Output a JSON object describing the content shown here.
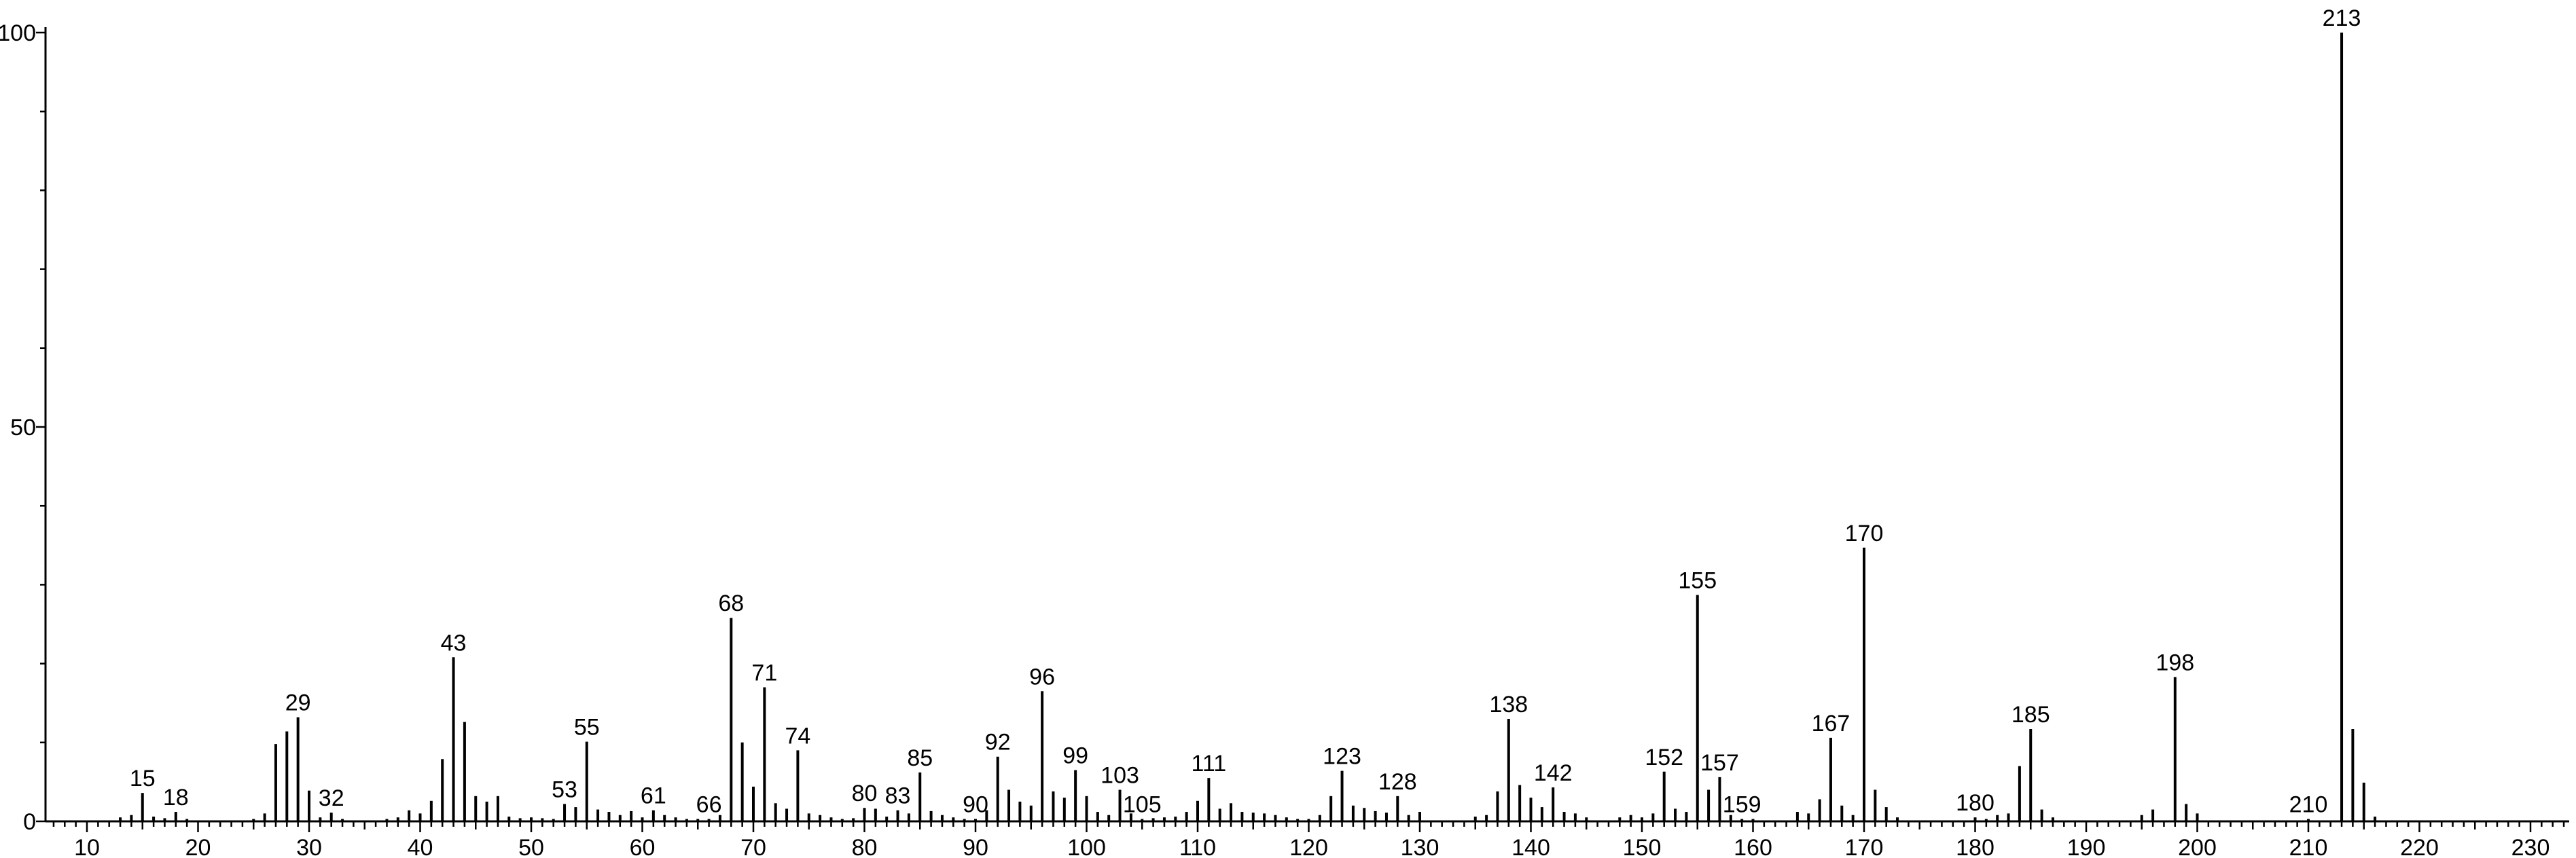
{
  "chart_data": {
    "type": "bar",
    "title": "",
    "xlabel": "",
    "ylabel": "",
    "xlim": [
      5,
      233
    ],
    "ylim": [
      0,
      100
    ],
    "x_ticks": [
      10,
      20,
      30,
      40,
      50,
      60,
      70,
      80,
      90,
      100,
      110,
      120,
      130,
      140,
      150,
      160,
      170,
      180,
      190,
      200,
      210,
      220,
      230
    ],
    "y_ticks": [
      0,
      50,
      100
    ],
    "grid": false,
    "peaks": [
      {
        "x": 13,
        "y": 0.5
      },
      {
        "x": 14,
        "y": 0.8
      },
      {
        "x": 15,
        "y": 3.6,
        "label": "15"
      },
      {
        "x": 16,
        "y": 0.6
      },
      {
        "x": 17,
        "y": 0.4
      },
      {
        "x": 18,
        "y": 1.2,
        "label": "18"
      },
      {
        "x": 19,
        "y": 0.3
      },
      {
        "x": 25,
        "y": 0.3
      },
      {
        "x": 26,
        "y": 1.0
      },
      {
        "x": 27,
        "y": 9.8
      },
      {
        "x": 28,
        "y": 11.4
      },
      {
        "x": 29,
        "y": 13.2,
        "label": "29"
      },
      {
        "x": 30,
        "y": 3.9
      },
      {
        "x": 31,
        "y": 0.5
      },
      {
        "x": 32,
        "y": 1.1,
        "label": "32"
      },
      {
        "x": 33,
        "y": 0.3
      },
      {
        "x": 37,
        "y": 0.3
      },
      {
        "x": 38,
        "y": 0.5
      },
      {
        "x": 39,
        "y": 1.4
      },
      {
        "x": 40,
        "y": 1.0
      },
      {
        "x": 41,
        "y": 2.6
      },
      {
        "x": 42,
        "y": 7.9
      },
      {
        "x": 43,
        "y": 20.8,
        "label": "43"
      },
      {
        "x": 44,
        "y": 12.6
      },
      {
        "x": 45,
        "y": 3.2
      },
      {
        "x": 46,
        "y": 2.5
      },
      {
        "x": 47,
        "y": 3.2
      },
      {
        "x": 48,
        "y": 0.6
      },
      {
        "x": 49,
        "y": 0.4
      },
      {
        "x": 50,
        "y": 0.5
      },
      {
        "x": 51,
        "y": 0.4
      },
      {
        "x": 52,
        "y": 0.3
      },
      {
        "x": 53,
        "y": 2.2,
        "label": "53"
      },
      {
        "x": 54,
        "y": 1.8
      },
      {
        "x": 55,
        "y": 10.1,
        "label": "55"
      },
      {
        "x": 56,
        "y": 1.5
      },
      {
        "x": 57,
        "y": 1.2
      },
      {
        "x": 58,
        "y": 0.8
      },
      {
        "x": 59,
        "y": 1.3
      },
      {
        "x": 60,
        "y": 0.5
      },
      {
        "x": 61,
        "y": 1.4,
        "label": "61"
      },
      {
        "x": 62,
        "y": 0.8
      },
      {
        "x": 63,
        "y": 0.5
      },
      {
        "x": 64,
        "y": 0.3
      },
      {
        "x": 65,
        "y": 0.3
      },
      {
        "x": 66,
        "y": 0.3,
        "label": "66"
      },
      {
        "x": 67,
        "y": 0.8
      },
      {
        "x": 68,
        "y": 25.8,
        "label": "68"
      },
      {
        "x": 69,
        "y": 10.0
      },
      {
        "x": 70,
        "y": 4.4
      },
      {
        "x": 71,
        "y": 17.0,
        "label": "71"
      },
      {
        "x": 72,
        "y": 2.3
      },
      {
        "x": 73,
        "y": 1.6
      },
      {
        "x": 74,
        "y": 9.0,
        "label": "74"
      },
      {
        "x": 75,
        "y": 1.0
      },
      {
        "x": 76,
        "y": 0.8
      },
      {
        "x": 77,
        "y": 0.5
      },
      {
        "x": 78,
        "y": 0.3
      },
      {
        "x": 79,
        "y": 0.4
      },
      {
        "x": 80,
        "y": 1.7,
        "label": "80"
      },
      {
        "x": 81,
        "y": 1.6
      },
      {
        "x": 82,
        "y": 0.6
      },
      {
        "x": 83,
        "y": 1.4,
        "label": "83"
      },
      {
        "x": 84,
        "y": 1.0
      },
      {
        "x": 85,
        "y": 6.2,
        "label": "85"
      },
      {
        "x": 86,
        "y": 1.3
      },
      {
        "x": 87,
        "y": 0.8
      },
      {
        "x": 88,
        "y": 0.5
      },
      {
        "x": 89,
        "y": 0.3
      },
      {
        "x": 90,
        "y": 0.3,
        "label": "90"
      },
      {
        "x": 91,
        "y": 1.4
      },
      {
        "x": 92,
        "y": 8.2,
        "label": "92"
      },
      {
        "x": 93,
        "y": 4.0
      },
      {
        "x": 94,
        "y": 2.5
      },
      {
        "x": 95,
        "y": 2.0
      },
      {
        "x": 96,
        "y": 16.5,
        "label": "96"
      },
      {
        "x": 97,
        "y": 3.8
      },
      {
        "x": 98,
        "y": 3.0
      },
      {
        "x": 99,
        "y": 6.5,
        "label": "99"
      },
      {
        "x": 100,
        "y": 3.2
      },
      {
        "x": 101,
        "y": 1.2
      },
      {
        "x": 102,
        "y": 0.8
      },
      {
        "x": 103,
        "y": 4.0,
        "label": "103"
      },
      {
        "x": 104,
        "y": 1.0
      },
      {
        "x": 105,
        "y": 0.3,
        "label": "105"
      },
      {
        "x": 106,
        "y": 0.4
      },
      {
        "x": 107,
        "y": 0.5
      },
      {
        "x": 108,
        "y": 0.6
      },
      {
        "x": 109,
        "y": 1.2
      },
      {
        "x": 110,
        "y": 2.6
      },
      {
        "x": 111,
        "y": 5.5,
        "label": "111"
      },
      {
        "x": 112,
        "y": 1.6
      },
      {
        "x": 113,
        "y": 2.3
      },
      {
        "x": 114,
        "y": 1.2
      },
      {
        "x": 115,
        "y": 1.1
      },
      {
        "x": 116,
        "y": 1.0
      },
      {
        "x": 117,
        "y": 0.8
      },
      {
        "x": 118,
        "y": 0.5
      },
      {
        "x": 119,
        "y": 0.3
      },
      {
        "x": 120,
        "y": 0.3
      },
      {
        "x": 121,
        "y": 0.8
      },
      {
        "x": 122,
        "y": 3.2
      },
      {
        "x": 123,
        "y": 6.4,
        "label": "123"
      },
      {
        "x": 124,
        "y": 2.0
      },
      {
        "x": 125,
        "y": 1.7
      },
      {
        "x": 126,
        "y": 1.3
      },
      {
        "x": 127,
        "y": 1.1
      },
      {
        "x": 128,
        "y": 3.2,
        "label": "128"
      },
      {
        "x": 129,
        "y": 0.8
      },
      {
        "x": 130,
        "y": 1.2
      },
      {
        "x": 135,
        "y": 0.6
      },
      {
        "x": 136,
        "y": 0.8
      },
      {
        "x": 137,
        "y": 3.8
      },
      {
        "x": 138,
        "y": 13.0,
        "label": "138"
      },
      {
        "x": 139,
        "y": 4.6
      },
      {
        "x": 140,
        "y": 3.0
      },
      {
        "x": 141,
        "y": 1.8
      },
      {
        "x": 142,
        "y": 4.3,
        "label": "142"
      },
      {
        "x": 143,
        "y": 1.2
      },
      {
        "x": 144,
        "y": 1.0
      },
      {
        "x": 145,
        "y": 0.5
      },
      {
        "x": 148,
        "y": 0.5
      },
      {
        "x": 149,
        "y": 0.8
      },
      {
        "x": 150,
        "y": 0.5
      },
      {
        "x": 151,
        "y": 1.0
      },
      {
        "x": 152,
        "y": 6.3,
        "label": "152"
      },
      {
        "x": 153,
        "y": 1.6
      },
      {
        "x": 154,
        "y": 1.2
      },
      {
        "x": 155,
        "y": 28.7,
        "label": "155"
      },
      {
        "x": 156,
        "y": 4.0
      },
      {
        "x": 157,
        "y": 5.6,
        "label": "157"
      },
      {
        "x": 158,
        "y": 0.8
      },
      {
        "x": 159,
        "y": 0.3,
        "label": "159"
      },
      {
        "x": 160,
        "y": 0.3
      },
      {
        "x": 164,
        "y": 1.2
      },
      {
        "x": 165,
        "y": 1.0
      },
      {
        "x": 166,
        "y": 2.8
      },
      {
        "x": 167,
        "y": 10.6,
        "label": "167"
      },
      {
        "x": 168,
        "y": 2.0
      },
      {
        "x": 169,
        "y": 0.8
      },
      {
        "x": 170,
        "y": 34.7,
        "label": "170"
      },
      {
        "x": 171,
        "y": 4.0
      },
      {
        "x": 172,
        "y": 1.8
      },
      {
        "x": 173,
        "y": 0.5
      },
      {
        "x": 180,
        "y": 0.5,
        "label": "180"
      },
      {
        "x": 181,
        "y": 0.3
      },
      {
        "x": 182,
        "y": 0.8
      },
      {
        "x": 183,
        "y": 1.0
      },
      {
        "x": 184,
        "y": 7.0
      },
      {
        "x": 185,
        "y": 11.7,
        "label": "185"
      },
      {
        "x": 186,
        "y": 1.5
      },
      {
        "x": 187,
        "y": 0.5
      },
      {
        "x": 195,
        "y": 0.8
      },
      {
        "x": 196,
        "y": 1.5
      },
      {
        "x": 198,
        "y": 18.3,
        "label": "198"
      },
      {
        "x": 199,
        "y": 2.2
      },
      {
        "x": 200,
        "y": 1.0
      },
      {
        "x": 210,
        "y": 0.3,
        "label": "210"
      },
      {
        "x": 213,
        "y": 100.0,
        "label": "213"
      },
      {
        "x": 214,
        "y": 11.7
      },
      {
        "x": 215,
        "y": 4.9
      },
      {
        "x": 216,
        "y": 0.6
      }
    ]
  }
}
